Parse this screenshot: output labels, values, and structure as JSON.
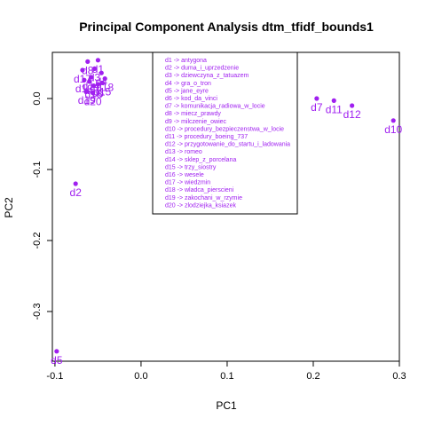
{
  "chart_data": {
    "type": "scatter",
    "title": "Principal Component Analysis dtm_tfidf_bounds1",
    "xlabel": "PC1",
    "ylabel": "PC2",
    "xlim": [
      -0.103,
      0.3
    ],
    "ylim": [
      -0.37,
      0.065
    ],
    "xticks": [
      -0.1,
      0.0,
      0.1,
      0.2,
      0.3
    ],
    "xtick_labels": [
      "-0.1",
      "0.0",
      "0.1",
      "0.2",
      "0.3"
    ],
    "yticks": [
      0.0,
      -0.1,
      -0.2,
      -0.3
    ],
    "ytick_labels": [
      "0.0",
      "-0.1",
      "-0.2",
      "-0.3"
    ],
    "color": "#a020f0",
    "grid": false,
    "legend_position": "top-center",
    "points": [
      {
        "label": "d1",
        "x": -0.05,
        "y": 0.054
      },
      {
        "label": "d2",
        "x": -0.076,
        "y": -0.12
      },
      {
        "label": "d3",
        "x": -0.054,
        "y": 0.042
      },
      {
        "label": "d4",
        "x": -0.046,
        "y": 0.036
      },
      {
        "label": "d5",
        "x": -0.098,
        "y": -0.356
      },
      {
        "label": "d6",
        "x": -0.05,
        "y": 0.02
      },
      {
        "label": "d7",
        "x": 0.204,
        "y": 0.0
      },
      {
        "label": "d8",
        "x": -0.062,
        "y": 0.052
      },
      {
        "label": "d9",
        "x": -0.06,
        "y": 0.024
      },
      {
        "label": "d10",
        "x": 0.293,
        "y": -0.031
      },
      {
        "label": "d11",
        "x": 0.224,
        "y": -0.003
      },
      {
        "label": "d12",
        "x": 0.245,
        "y": -0.01
      },
      {
        "label": "d13",
        "x": -0.066,
        "y": 0.026
      },
      {
        "label": "d14",
        "x": -0.058,
        "y": 0.03
      },
      {
        "label": "d15",
        "x": -0.045,
        "y": 0.022
      },
      {
        "label": "d16",
        "x": -0.055,
        "y": 0.018
      },
      {
        "label": "d17",
        "x": -0.068,
        "y": 0.04
      },
      {
        "label": "d18",
        "x": -0.042,
        "y": 0.028
      },
      {
        "label": "d19",
        "x": -0.063,
        "y": 0.01
      },
      {
        "label": "d20",
        "x": -0.056,
        "y": 0.008
      }
    ],
    "legend": [
      "d1 -> antygona",
      "d2 -> duma_i_uprzedzenie",
      "d3 -> dziewczyna_z_tatuazem",
      "d4 -> gra_o_tron",
      "d5 -> jane_eyre",
      "d6 -> kod_da_vinci",
      "d7 -> komunikacja_radiowa_w_locie",
      "d8 -> miecz_prawdy",
      "d9 -> milczenie_owiec",
      "d10 -> procedury_bezpieczenstwa_w_locie",
      "d11 -> procedury_boeing_737",
      "d12 -> przygotowanie_do_startu_i_ladowania",
      "d13 -> romeo",
      "d14 -> sklep_z_porcelana",
      "d15 -> trzy_siostry",
      "d16 -> wesele",
      "d17 -> wiedzmin",
      "d18 -> wladca_pierscieni",
      "d19 -> zakochani_w_rzymie",
      "d20 -> zlodziejka_ksiazek"
    ]
  }
}
